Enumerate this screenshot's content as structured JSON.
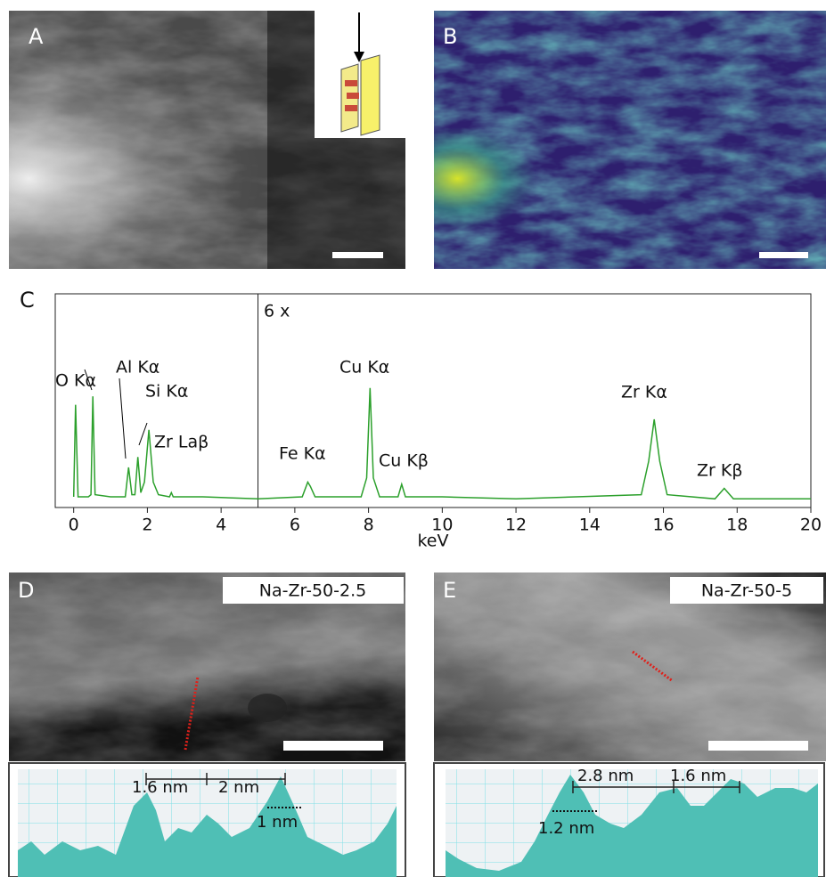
{
  "panels": [
    {
      "label": "A"
    },
    {
      "label": "B"
    },
    {
      "label": "C"
    },
    {
      "label": "D",
      "sample": "Na-Zr-50-2.5",
      "distances": [
        "1.6 nm",
        "2 nm",
        "1 nm"
      ]
    },
    {
      "label": "E",
      "sample": "Na-Zr-50-5",
      "distances": [
        "2.8 nm",
        "1.6 nm",
        "1.2 nm"
      ]
    }
  ],
  "chart_data": {
    "type": "line",
    "xlabel": "keV",
    "color": "#2ca02c",
    "annotations": [
      "O Kα",
      "Al Kα",
      "Si Kα",
      "Zr Laβ",
      "Fe Kα",
      "Cu Kα",
      "Cu Kβ",
      "Zr Kα",
      "Zr Kβ",
      "6 x"
    ],
    "x": [
      0,
      0.05,
      0.12,
      0.4,
      0.47,
      0.52,
      0.58,
      1.0,
      1.4,
      1.49,
      1.58,
      1.66,
      1.74,
      1.82,
      1.92,
      2.04,
      2.16,
      2.3,
      2.6,
      2.65,
      2.7,
      3.5,
      5,
      6.2,
      6.35,
      6.42,
      6.55,
      7.0,
      7.8,
      7.95,
      8.04,
      8.13,
      8.3,
      8.8,
      8.9,
      9.0,
      10,
      12,
      15.4,
      15.6,
      15.75,
      15.9,
      16.1,
      17.4,
      17.65,
      17.9,
      20
    ],
    "values": [
      3,
      47,
      3,
      3,
      4,
      51,
      4,
      3,
      3,
      17,
      4,
      4,
      22,
      5,
      10,
      35,
      10,
      4,
      3,
      5,
      3,
      3,
      2,
      3,
      10,
      8,
      3,
      3,
      3,
      12,
      55,
      12,
      3,
      3,
      9,
      3,
      3,
      2,
      4,
      20,
      40,
      20,
      4,
      2,
      7,
      2,
      2
    ],
    "xlim": [
      -0.5,
      20
    ],
    "ylim": [
      0,
      100
    ],
    "xticks": [
      0,
      2,
      4,
      6,
      8,
      10,
      12,
      14,
      16,
      18,
      20
    ],
    "divider_x": 5
  }
}
